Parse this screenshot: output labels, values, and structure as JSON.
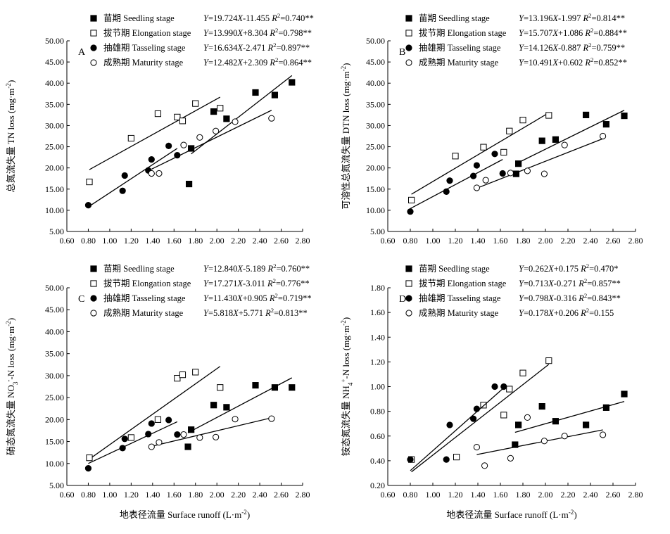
{
  "x_axis_label": "地表径流量 Surface runoff (L·m⁻²)",
  "chart_data": [
    {
      "type": "scatter",
      "panel_label": "A",
      "ylabel": "总氮流失量 TN loss (mg·m⁻²)",
      "xlim": [
        0.6,
        2.8
      ],
      "ylim": [
        5,
        50
      ],
      "x_ticks": [
        "0.60",
        "0.80",
        "1.00",
        "1.20",
        "1.40",
        "1.60",
        "1.80",
        "2.00",
        "2.20",
        "2.40",
        "2.60",
        "2.80"
      ],
      "y_ticks": [
        "5.00",
        "10.00",
        "15.00",
        "20.00",
        "25.00",
        "30.00",
        "35.00",
        "40.00",
        "45.00",
        "50.00"
      ],
      "series": [
        {
          "name": "苗期 Seedling stage",
          "marker": "filled-square",
          "equation": "Y=19.724X-11.455 R²=0.740**",
          "points": [
            [
              1.76,
              24.6
            ],
            [
              1.74,
              16.2
            ],
            [
              1.97,
              33.3
            ],
            [
              2.09,
              31.6
            ],
            [
              2.36,
              37.8
            ],
            [
              2.54,
              37.2
            ],
            [
              2.7,
              40.2
            ]
          ],
          "fit": [
            [
              1.76,
              23.3
            ],
            [
              2.7,
              41.8
            ]
          ]
        },
        {
          "name": "拔节期 Elongation stage",
          "marker": "open-square",
          "equation": "Y=13.990X+8.304 R²=0.798**",
          "points": [
            [
              0.81,
              16.7
            ],
            [
              1.2,
              27.0
            ],
            [
              1.45,
              32.8
            ],
            [
              1.63,
              32.0
            ],
            [
              1.68,
              31.1
            ],
            [
              1.8,
              35.2
            ],
            [
              2.03,
              34.1
            ]
          ],
          "fit": [
            [
              0.81,
              19.6
            ],
            [
              2.03,
              36.7
            ]
          ]
        },
        {
          "name": "抽雄期 Tasseling stage",
          "marker": "filled-circle",
          "equation": "Y=16.634X-2.471 R²=0.897**",
          "points": [
            [
              0.8,
              11.2
            ],
            [
              1.12,
              14.6
            ],
            [
              1.14,
              18.2
            ],
            [
              1.36,
              19.4
            ],
            [
              1.39,
              22.0
            ],
            [
              1.55,
              25.2
            ],
            [
              1.63,
              23.0
            ]
          ],
          "fit": [
            [
              0.8,
              10.8
            ],
            [
              1.63,
              24.6
            ]
          ]
        },
        {
          "name": "成熟期 Maturity stage",
          "marker": "open-circle",
          "equation": "Y=12.482X+2.309 R²=0.864**",
          "points": [
            [
              1.39,
              18.7
            ],
            [
              1.46,
              18.7
            ],
            [
              1.69,
              25.4
            ],
            [
              1.84,
              27.2
            ],
            [
              1.99,
              28.7
            ],
            [
              2.17,
              30.9
            ],
            [
              2.51,
              31.7
            ]
          ],
          "fit": [
            [
              1.39,
              19.7
            ],
            [
              2.51,
              33.6
            ]
          ]
        }
      ]
    },
    {
      "type": "scatter",
      "panel_label": "B",
      "ylabel": "可溶性总氮流失量 DTN loss (mg·m⁻²)",
      "xlim": [
        0.6,
        2.8
      ],
      "ylim": [
        5,
        50
      ],
      "x_ticks": [
        "0.60",
        "0.80",
        "1.00",
        "1.20",
        "1.40",
        "1.60",
        "1.80",
        "2.00",
        "2.20",
        "2.40",
        "2.60",
        "2.80"
      ],
      "y_ticks": [
        "5.00",
        "10.00",
        "15.00",
        "20.00",
        "25.00",
        "30.00",
        "35.00",
        "40.00",
        "45.00",
        "50.00"
      ],
      "series": [
        {
          "name": "苗期 Seedling stage",
          "marker": "filled-square",
          "equation": "Y=13.196X-1.997 R²=0.814**",
          "points": [
            [
              1.74,
              18.6
            ],
            [
              1.76,
              21.0
            ],
            [
              1.97,
              26.4
            ],
            [
              2.09,
              26.7
            ],
            [
              2.36,
              32.5
            ],
            [
              2.54,
              30.3
            ],
            [
              2.7,
              32.3
            ]
          ],
          "fit": [
            [
              1.74,
              21.0
            ],
            [
              2.7,
              33.6
            ]
          ]
        },
        {
          "name": "拔节期 Elongation stage",
          "marker": "open-square",
          "equation": "Y=15.707X+1.086 R²=0.884**",
          "points": [
            [
              0.81,
              12.4
            ],
            [
              1.2,
              22.8
            ],
            [
              1.45,
              24.9
            ],
            [
              1.63,
              23.7
            ],
            [
              1.68,
              28.7
            ],
            [
              1.8,
              31.3
            ],
            [
              2.03,
              32.4
            ]
          ],
          "fit": [
            [
              0.81,
              13.8
            ],
            [
              2.03,
              33.0
            ]
          ]
        },
        {
          "name": "抽雄期 Tasseling stage",
          "marker": "filled-circle",
          "equation": "Y=14.126X-0.887 R²=0.759**",
          "points": [
            [
              0.8,
              9.7
            ],
            [
              1.12,
              14.4
            ],
            [
              1.15,
              17.0
            ],
            [
              1.36,
              18.1
            ],
            [
              1.39,
              20.6
            ],
            [
              1.55,
              23.3
            ],
            [
              1.62,
              18.7
            ]
          ],
          "fit": [
            [
              0.8,
              10.4
            ],
            [
              1.62,
              22.0
            ]
          ]
        },
        {
          "name": "成熟期 Maturity stage",
          "marker": "open-circle",
          "equation": "Y=10.491X+0.602 R²=0.852**",
          "points": [
            [
              1.39,
              15.3
            ],
            [
              1.47,
              17.1
            ],
            [
              1.69,
              18.8
            ],
            [
              1.84,
              19.3
            ],
            [
              1.99,
              18.6
            ],
            [
              2.17,
              25.4
            ],
            [
              2.51,
              27.5
            ]
          ],
          "fit": [
            [
              1.39,
              15.2
            ],
            [
              2.51,
              26.9
            ]
          ]
        }
      ]
    },
    {
      "type": "scatter",
      "panel_label": "C",
      "ylabel": "硝态氮流失量 NO₃⁻-N loss (mg·m⁻²)",
      "xlim": [
        0.6,
        2.8
      ],
      "ylim": [
        5,
        50
      ],
      "x_ticks": [
        "0.60",
        "0.80",
        "1.00",
        "1.20",
        "1.40",
        "1.60",
        "1.80",
        "2.00",
        "2.20",
        "2.40",
        "2.60",
        "2.80"
      ],
      "y_ticks": [
        "5.00",
        "10.00",
        "15.00",
        "20.00",
        "25.00",
        "30.00",
        "35.00",
        "40.00",
        "45.00",
        "50.00"
      ],
      "series": [
        {
          "name": "苗期 Seedling stage",
          "marker": "filled-square",
          "equation": "Y=12.840X-5.189 R²=0.760**",
          "points": [
            [
              1.73,
              13.8
            ],
            [
              1.76,
              17.7
            ],
            [
              1.97,
              23.3
            ],
            [
              2.09,
              22.8
            ],
            [
              2.36,
              27.8
            ],
            [
              2.54,
              27.3
            ],
            [
              2.7,
              27.3
            ]
          ],
          "fit": [
            [
              1.73,
              17.0
            ],
            [
              2.7,
              29.5
            ]
          ]
        },
        {
          "name": "拔节期 Elongation stage",
          "marker": "open-square",
          "equation": "Y=17.271X-3.011 R²=0.776**",
          "points": [
            [
              0.81,
              11.3
            ],
            [
              1.2,
              15.9
            ],
            [
              1.45,
              20.0
            ],
            [
              1.63,
              29.4
            ],
            [
              1.68,
              30.2
            ],
            [
              1.8,
              30.8
            ],
            [
              2.03,
              27.3
            ]
          ],
          "fit": [
            [
              0.81,
              11.0
            ],
            [
              2.03,
              32.1
            ]
          ]
        },
        {
          "name": "抽雄期 Tasseling stage",
          "marker": "filled-circle",
          "equation": "Y=11.430X+0.905 R²=0.719**",
          "points": [
            [
              0.8,
              8.9
            ],
            [
              1.12,
              13.5
            ],
            [
              1.14,
              15.6
            ],
            [
              1.36,
              16.7
            ],
            [
              1.39,
              19.1
            ],
            [
              1.55,
              19.9
            ],
            [
              1.63,
              16.6
            ]
          ],
          "fit": [
            [
              0.8,
              10.0
            ],
            [
              1.63,
              19.5
            ]
          ]
        },
        {
          "name": "成熟期 Maturity stage",
          "marker": "open-circle",
          "equation": "Y=5.818X+5.771 R²=0.813**",
          "points": [
            [
              1.39,
              13.8
            ],
            [
              1.46,
              14.8
            ],
            [
              1.69,
              16.6
            ],
            [
              1.84,
              15.9
            ],
            [
              1.99,
              16.0
            ],
            [
              2.17,
              20.1
            ],
            [
              2.51,
              20.2
            ]
          ],
          "fit": [
            [
              1.39,
              13.9
            ],
            [
              2.51,
              20.4
            ]
          ]
        }
      ]
    },
    {
      "type": "scatter",
      "panel_label": "D",
      "ylabel": "铵态氮流失量 NH₄⁺-N loss (mg·m⁻²)",
      "xlim": [
        0.6,
        2.8
      ],
      "ylim": [
        0.2,
        1.8
      ],
      "x_ticks": [
        "0.60",
        "0.80",
        "1.00",
        "1.20",
        "1.40",
        "1.60",
        "1.80",
        "2.00",
        "2.20",
        "2.40",
        "2.60",
        "2.80"
      ],
      "y_ticks": [
        "0.20",
        "0.40",
        "0.60",
        "0.80",
        "1.00",
        "1.20",
        "1.40",
        "1.60",
        "1.80"
      ],
      "series": [
        {
          "name": "苗期 Seedling stage",
          "marker": "filled-square",
          "equation": "Y=0.262X+0.175 R²=0.470*",
          "points": [
            [
              1.73,
              0.53
            ],
            [
              1.76,
              0.69
            ],
            [
              1.97,
              0.84
            ],
            [
              2.09,
              0.72
            ],
            [
              2.36,
              0.69
            ],
            [
              2.54,
              0.83
            ],
            [
              2.7,
              0.94
            ]
          ],
          "fit": [
            [
              1.73,
              0.63
            ],
            [
              2.7,
              0.88
            ]
          ]
        },
        {
          "name": "拔节期 Elongation stage",
          "marker": "open-square",
          "equation": "Y=0.713X-0.271 R²=0.857**",
          "points": [
            [
              0.81,
              0.41
            ],
            [
              1.21,
              0.43
            ],
            [
              1.45,
              0.85
            ],
            [
              1.63,
              0.77
            ],
            [
              1.68,
              0.98
            ],
            [
              1.8,
              1.11
            ],
            [
              2.03,
              1.21
            ]
          ],
          "fit": [
            [
              0.81,
              0.31
            ],
            [
              2.03,
              1.18
            ]
          ]
        },
        {
          "name": "抽雄期 Tasseling stage",
          "marker": "filled-circle",
          "equation": "Y=0.798X-0.316 R²=0.843**",
          "points": [
            [
              0.8,
              0.41
            ],
            [
              1.12,
              0.41
            ],
            [
              1.15,
              0.69
            ],
            [
              1.36,
              0.74
            ],
            [
              1.39,
              0.82
            ],
            [
              1.55,
              1.0
            ],
            [
              1.63,
              1.0
            ]
          ],
          "fit": [
            [
              0.8,
              0.32
            ],
            [
              1.63,
              0.99
            ]
          ]
        },
        {
          "name": "成熟期 Maturity stage",
          "marker": "open-circle",
          "equation": "Y=0.178X+0.206 R²=0.155",
          "points": [
            [
              1.39,
              0.51
            ],
            [
              1.46,
              0.36
            ],
            [
              1.69,
              0.42
            ],
            [
              1.84,
              0.75
            ],
            [
              1.99,
              0.56
            ],
            [
              2.17,
              0.6
            ],
            [
              2.51,
              0.61
            ]
          ],
          "fit": [
            [
              1.39,
              0.45
            ],
            [
              2.51,
              0.65
            ]
          ]
        }
      ]
    }
  ]
}
